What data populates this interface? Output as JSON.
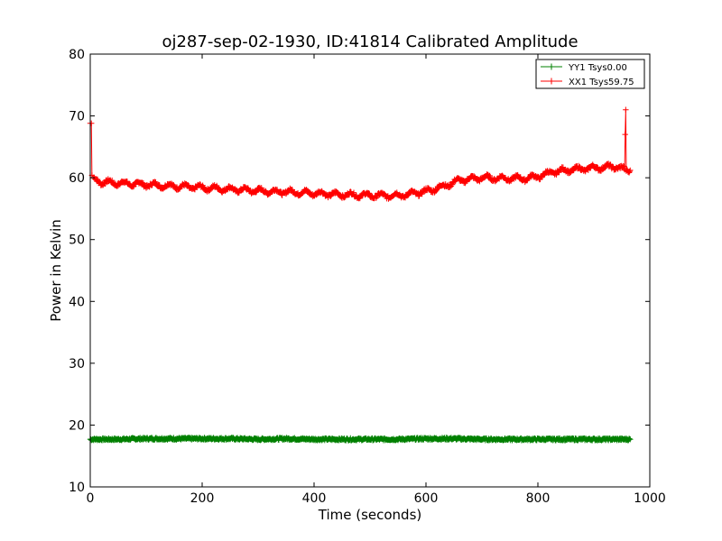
{
  "chart_data": {
    "type": "line",
    "title": "oj287-sep-02-1930, ID:41814 Calibrated Amplitude",
    "xlabel": "Time (seconds)",
    "ylabel": "Power in Kelvin",
    "xlim": [
      0,
      1000
    ],
    "ylim": [
      10,
      80
    ],
    "xticks": [
      0,
      200,
      400,
      600,
      800,
      1000
    ],
    "yticks": [
      10,
      20,
      30,
      40,
      50,
      60,
      70,
      80
    ],
    "grid": false,
    "legend_position": "top-right",
    "marker": "+",
    "series": [
      {
        "name": "YY1 Tsys0.00",
        "color": "#008000",
        "points": [
          [
            0,
            17.7
          ],
          [
            50,
            17.7
          ],
          [
            100,
            17.8
          ],
          [
            150,
            17.8
          ],
          [
            200,
            17.8
          ],
          [
            250,
            17.8
          ],
          [
            300,
            17.7
          ],
          [
            350,
            17.8
          ],
          [
            400,
            17.7
          ],
          [
            450,
            17.7
          ],
          [
            500,
            17.7
          ],
          [
            550,
            17.7
          ],
          [
            600,
            17.8
          ],
          [
            650,
            17.8
          ],
          [
            700,
            17.7
          ],
          [
            750,
            17.7
          ],
          [
            800,
            17.7
          ],
          [
            850,
            17.7
          ],
          [
            900,
            17.7
          ],
          [
            958,
            17.7
          ],
          [
            965,
            17.7
          ]
        ]
      },
      {
        "name": "XX1 Tsys59.75",
        "color": "#ff0000",
        "points": [
          [
            0,
            68.8
          ],
          [
            2,
            68.8
          ],
          [
            3,
            60.4
          ],
          [
            6,
            59.7
          ],
          [
            20,
            59.3
          ],
          [
            40,
            59.2
          ],
          [
            80,
            59.0
          ],
          [
            120,
            58.8
          ],
          [
            160,
            58.6
          ],
          [
            200,
            58.4
          ],
          [
            240,
            58.2
          ],
          [
            280,
            58.0
          ],
          [
            320,
            57.8
          ],
          [
            360,
            57.7
          ],
          [
            400,
            57.5
          ],
          [
            440,
            57.3
          ],
          [
            480,
            57.2
          ],
          [
            520,
            57.1
          ],
          [
            560,
            57.2
          ],
          [
            600,
            57.8
          ],
          [
            630,
            58.6
          ],
          [
            660,
            59.6
          ],
          [
            700,
            60.0
          ],
          [
            740,
            59.9
          ],
          [
            780,
            59.9
          ],
          [
            800,
            60.2
          ],
          [
            830,
            61.0
          ],
          [
            860,
            61.3
          ],
          [
            900,
            61.6
          ],
          [
            940,
            61.8
          ],
          [
            955,
            61.3
          ],
          [
            956,
            67.0
          ],
          [
            957,
            71.0
          ],
          [
            958,
            61.2
          ],
          [
            965,
            61.2
          ]
        ]
      }
    ]
  }
}
